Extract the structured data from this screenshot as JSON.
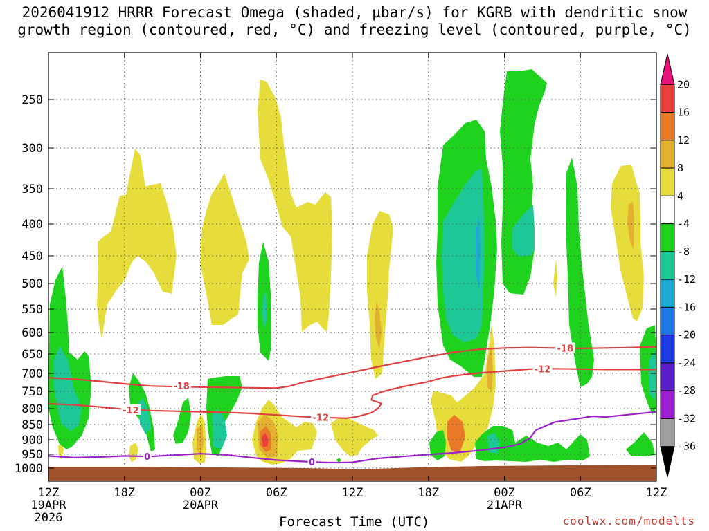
{
  "chart_data": {
    "type": "heatmap",
    "title": "2026041912 HRRR Forecast Omega (shaded, µbar/s) for KGRB with dendritic snow\ngrowth region (contoured, red, °C) and freezing level (contoured, purple, °C)",
    "xlabel": "Forecast Time (UTC)",
    "ylabel": "",
    "y_ticks_hpa": [
      250,
      300,
      350,
      400,
      450,
      500,
      550,
      600,
      650,
      700,
      750,
      800,
      850,
      900,
      950,
      1000
    ],
    "ylim_hpa": [
      1030,
      200
    ],
    "xlim_hours": [
      0,
      48
    ],
    "x_ticks": [
      {
        "hour": 0,
        "label": "12Z",
        "sub1": "19APR",
        "sub2": "2026"
      },
      {
        "hour": 6,
        "label": "18Z",
        "sub1": "",
        "sub2": ""
      },
      {
        "hour": 12,
        "label": "00Z",
        "sub1": "20APR",
        "sub2": ""
      },
      {
        "hour": 18,
        "label": "06Z",
        "sub1": "",
        "sub2": ""
      },
      {
        "hour": 24,
        "label": "12Z",
        "sub1": "",
        "sub2": ""
      },
      {
        "hour": 30,
        "label": "18Z",
        "sub1": "",
        "sub2": ""
      },
      {
        "hour": 36,
        "label": "00Z",
        "sub1": "21APR",
        "sub2": ""
      },
      {
        "hour": 42,
        "label": "06Z",
        "sub1": "",
        "sub2": ""
      },
      {
        "hour": 48,
        "label": "12Z",
        "sub1": "",
        "sub2": ""
      }
    ],
    "colorbar": {
      "labels": [
        "20",
        "16",
        "12",
        "8",
        "4",
        "-4",
        "-8",
        "-12",
        "-16",
        "-20",
        "-24",
        "-28",
        "-32",
        "-36"
      ],
      "colors": [
        "#e8137a",
        "#e8403a",
        "#e87a28",
        "#e3b030",
        "#e6dc3c",
        "#ffffff",
        "#1ed21e",
        "#1ec896",
        "#1eaad2",
        "#1e78e6",
        "#1e3ce6",
        "#5a1ec8",
        "#a01ed2",
        "#a0a0a0",
        "#000000"
      ]
    },
    "contours": [
      {
        "label": "-18",
        "color": "#e04040",
        "points": [
          [
            0,
            712
          ],
          [
            2,
            716
          ],
          [
            4,
            722
          ],
          [
            6,
            729
          ],
          [
            8,
            735
          ],
          [
            10,
            737
          ],
          [
            12,
            738
          ],
          [
            14,
            739
          ],
          [
            16,
            740
          ],
          [
            18,
            741
          ],
          [
            19,
            736
          ],
          [
            20,
            726
          ],
          [
            22,
            711
          ],
          [
            24,
            697
          ],
          [
            26,
            683
          ],
          [
            28,
            670
          ],
          [
            30,
            657
          ],
          [
            32,
            646
          ],
          [
            34,
            639
          ],
          [
            36,
            636
          ],
          [
            38,
            635
          ],
          [
            40,
            636
          ],
          [
            42,
            637
          ],
          [
            44,
            636
          ],
          [
            46,
            635
          ],
          [
            48,
            633
          ]
        ],
        "label_positions": [
          [
            10.5,
            735
          ],
          [
            40.8,
            636
          ]
        ]
      },
      {
        "label": "-12",
        "color": "#e04040",
        "points": [
          [
            0,
            786
          ],
          [
            2,
            789
          ],
          [
            4,
            795
          ],
          [
            6,
            802
          ],
          [
            8,
            806
          ],
          [
            10,
            808
          ],
          [
            12,
            810
          ],
          [
            14,
            812
          ],
          [
            16,
            815
          ],
          [
            18,
            820
          ],
          [
            20,
            825
          ],
          [
            22,
            828
          ],
          [
            23.5,
            830
          ],
          [
            24.3,
            826
          ],
          [
            25.5,
            813
          ],
          [
            26,
            800
          ],
          [
            26.3,
            785
          ],
          [
            25.5,
            775
          ],
          [
            25.6,
            762
          ],
          [
            26.3,
            752
          ],
          [
            27,
            745
          ],
          [
            28,
            737
          ],
          [
            29,
            730
          ],
          [
            30,
            723
          ],
          [
            31,
            713
          ],
          [
            32,
            707
          ],
          [
            34,
            699
          ],
          [
            36,
            694
          ],
          [
            38,
            689
          ],
          [
            40,
            688
          ],
          [
            42,
            689
          ],
          [
            44,
            690
          ],
          [
            46,
            690
          ],
          [
            48,
            690
          ]
        ],
        "label_positions": [
          [
            6.5,
            804
          ],
          [
            21.5,
            827
          ],
          [
            39,
            688
          ]
        ]
      },
      {
        "label": "0",
        "color": "#9a22c8",
        "points": [
          [
            0,
            956
          ],
          [
            2,
            962
          ],
          [
            4,
            960
          ],
          [
            6,
            956
          ],
          [
            8,
            958
          ],
          [
            10,
            953
          ],
          [
            12,
            948
          ],
          [
            14,
            952
          ],
          [
            16,
            962
          ],
          [
            18,
            971
          ],
          [
            20,
            976
          ],
          [
            22,
            980
          ],
          [
            23,
            980
          ],
          [
            24,
            979
          ],
          [
            26,
            965
          ],
          [
            28,
            958
          ],
          [
            30,
            951
          ],
          [
            32,
            945
          ],
          [
            34,
            937
          ],
          [
            36,
            926
          ],
          [
            37.2,
            915
          ],
          [
            38,
            895
          ],
          [
            38.5,
            868
          ],
          [
            39.5,
            850
          ],
          [
            40,
            842
          ],
          [
            41,
            836
          ],
          [
            42,
            830
          ],
          [
            43,
            824
          ],
          [
            44,
            826
          ],
          [
            46,
            818
          ],
          [
            48,
            810
          ]
        ],
        "label_positions": [
          [
            7.8,
            958
          ],
          [
            20.8,
            977
          ]
        ]
      }
    ]
  },
  "footer": {
    "credit": "coolwx.com/modelts"
  }
}
